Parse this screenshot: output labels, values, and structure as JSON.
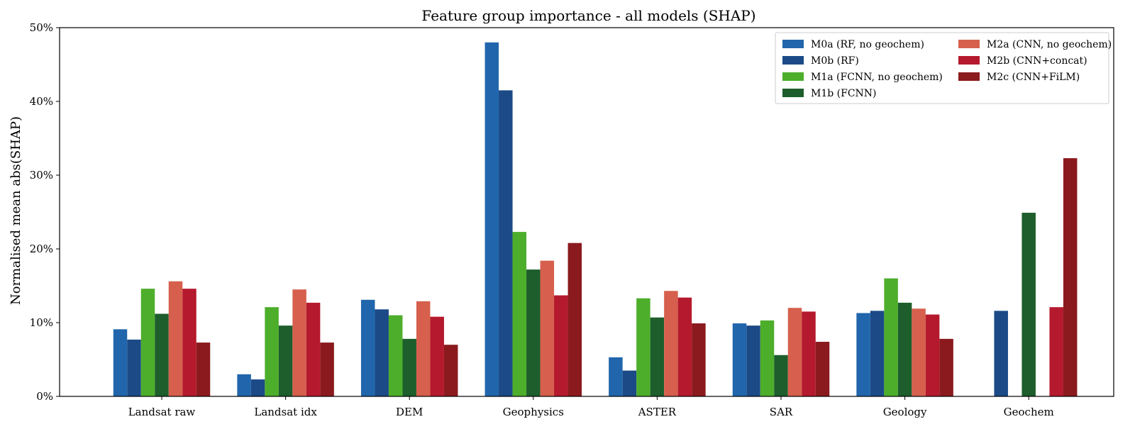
{
  "chart_data": {
    "type": "bar",
    "title": "Feature group importance  -  all models (SHAP)",
    "xlabel": "",
    "ylabel": "Normalised mean abs(SHAP)",
    "ylim": [
      0,
      50
    ],
    "yticks": [
      "0%",
      "10%",
      "20%",
      "30%",
      "40%",
      "50%"
    ],
    "ytick_values": [
      0,
      10,
      20,
      30,
      40,
      50
    ],
    "grid": false,
    "legend_position": "top-right",
    "categories": [
      "Landsat raw",
      "Landsat idx",
      "DEM",
      "Geophysics",
      "ASTER",
      "SAR",
      "Geology",
      "Geochem"
    ],
    "series": [
      {
        "name": "M0a (RF, no geochem)",
        "color": "#2166ac",
        "values": [
          9.1,
          3.0,
          13.1,
          48.0,
          5.3,
          9.9,
          11.3,
          null
        ]
      },
      {
        "name": "M0b (RF)",
        "color": "#1b4a87",
        "values": [
          7.7,
          2.3,
          11.8,
          41.5,
          3.5,
          9.6,
          11.6,
          11.6
        ]
      },
      {
        "name": "M1a (FCNN, no geochem)",
        "color": "#4dae2b",
        "values": [
          14.6,
          12.1,
          11.0,
          22.3,
          13.3,
          10.3,
          16.0,
          null
        ]
      },
      {
        "name": "M1b (FCNN)",
        "color": "#1d5e2c",
        "values": [
          11.2,
          9.6,
          7.8,
          17.2,
          10.7,
          5.6,
          12.7,
          24.9
        ]
      },
      {
        "name": "M2a (CNN, no geochem)",
        "color": "#d6604d",
        "values": [
          15.6,
          14.5,
          12.9,
          18.4,
          14.3,
          12.0,
          11.9,
          null
        ]
      },
      {
        "name": "M2b (CNN+concat)",
        "color": "#b5192d",
        "values": [
          14.6,
          12.7,
          10.8,
          13.7,
          13.4,
          11.5,
          11.1,
          12.1
        ]
      },
      {
        "name": "M2c (CNN+FiLM)",
        "color": "#8b1a1e",
        "values": [
          7.3,
          7.3,
          7.0,
          20.8,
          9.9,
          7.4,
          7.8,
          32.3
        ]
      }
    ]
  }
}
